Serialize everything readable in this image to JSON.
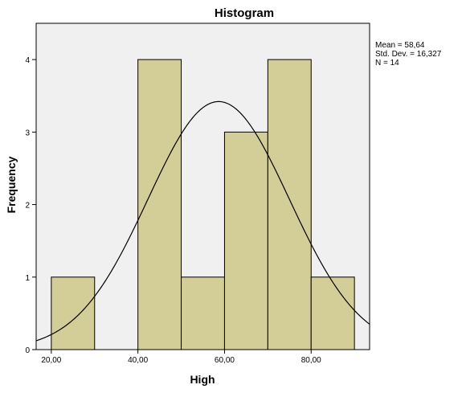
{
  "chart_data": {
    "type": "bar",
    "title": "Histogram",
    "xlabel": "High",
    "ylabel": "Frequency",
    "bins": [
      {
        "start": 20,
        "end": 30,
        "count": 1
      },
      {
        "start": 30,
        "end": 40,
        "count": 0
      },
      {
        "start": 40,
        "end": 50,
        "count": 4
      },
      {
        "start": 50,
        "end": 60,
        "count": 1
      },
      {
        "start": 60,
        "end": 70,
        "count": 3
      },
      {
        "start": 70,
        "end": 80,
        "count": 4
      },
      {
        "start": 80,
        "end": 90,
        "count": 1
      }
    ],
    "x_ticks": [
      {
        "value": 20,
        "label": "20,00"
      },
      {
        "value": 40,
        "label": "40,00"
      },
      {
        "value": 60,
        "label": "60,00"
      },
      {
        "value": 80,
        "label": "80,00"
      }
    ],
    "y_ticks": [
      0,
      1,
      2,
      3,
      4
    ],
    "xlim": [
      16.5,
      93.5
    ],
    "ylim": [
      0,
      4.5
    ],
    "normal_curve": {
      "mean": 58.64,
      "std": 16.327,
      "n": 14,
      "bin_width": 10
    },
    "stats_text": [
      "Mean = 58,64",
      "Std. Dev. = 16,327",
      "N = 14"
    ],
    "legend_placement": "right",
    "grid": false,
    "colors": {
      "plot_background": "#f0f0f0",
      "bar_fill": "#d3ce97",
      "bar_stroke": "#000000",
      "curve": "#000000"
    }
  }
}
